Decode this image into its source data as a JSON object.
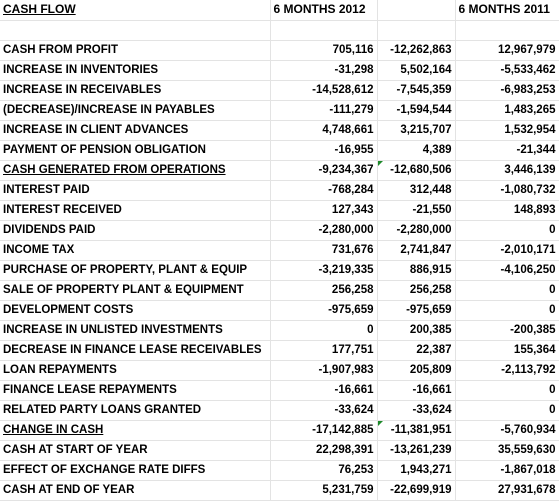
{
  "header": {
    "title": "CASH FLOW",
    "col_2012": "6 MONTHS 2012",
    "col_2011": "6 MONTHS 2011"
  },
  "rows": [
    {
      "label": "CASH FROM PROFIT",
      "a": "705,116",
      "b": "-12,262,863",
      "c": "12,967,979",
      "b_sign": "neg"
    },
    {
      "label": "INCREASE IN INVENTORIES",
      "a": "-31,298",
      "b": "5,502,164",
      "c": "-5,533,462",
      "b_sign": "pos"
    },
    {
      "label": "INCREASE IN RECEIVABLES",
      "a": "-14,528,612",
      "b": "-7,545,359",
      "c": "-6,983,253",
      "b_sign": "neg"
    },
    {
      "label": "(DECREASE)/INCREASE  IN PAYABLES",
      "a": "-111,279",
      "b": "-1,594,544",
      "c": "1,483,265",
      "b_sign": "neg"
    },
    {
      "label": "INCREASE IN CLIENT ADVANCES",
      "a": "4,748,661",
      "b": "3,215,707",
      "c": "1,532,954",
      "b_sign": "pos"
    },
    {
      "label": "PAYMENT OF PENSION OBLIGATION",
      "a": "-16,955",
      "b": "4,389",
      "c": "-21,344",
      "b_sign": "pos"
    },
    {
      "label": "CASH GENERATED FROM OPERATIONS",
      "a": "-9,234,367",
      "b": "-12,680,506",
      "c": "3,446,139",
      "b_sign": "neg",
      "marker": true
    },
    {
      "label": "INTEREST PAID",
      "a": "-768,284",
      "b": "312,448",
      "c": "-1,080,732",
      "b_sign": "pos"
    },
    {
      "label": "INTEREST RECEIVED",
      "a": "127,343",
      "b": "-21,550",
      "c": "148,893",
      "b_sign": "neg"
    },
    {
      "label": "DIVIDENDS PAID",
      "a": "-2,280,000",
      "b": "-2,280,000",
      "c": "0",
      "b_sign": "neg"
    },
    {
      "label": "INCOME TAX",
      "a": "731,676",
      "b": "2,741,847",
      "c": "-2,010,171",
      "b_sign": "pos"
    },
    {
      "label": "PURCHASE OF PROPERTY, PLANT & EQUIP",
      "a": "-3,219,335",
      "b": "886,915",
      "c": "-4,106,250",
      "b_sign": "pos"
    },
    {
      "label": "SALE OF PROPERTY PLANT & EQUIPMENT",
      "a": "256,258",
      "b": "256,258",
      "c": "0",
      "b_sign": "pos"
    },
    {
      "label": "DEVELOPMENT COSTS",
      "a": "-975,659",
      "b": "-975,659",
      "c": "0",
      "b_sign": "neg"
    },
    {
      "label": "INCREASE IN UNLISTED INVESTMENTS",
      "a": "0",
      "b": "200,385",
      "c": "-200,385",
      "b_sign": "pos"
    },
    {
      "label": "DECREASE IN FINANCE LEASE RECEIVABLES",
      "a": "177,751",
      "b": "22,387",
      "c": "155,364",
      "b_sign": "pos"
    },
    {
      "label": "LOAN REPAYMENTS",
      "a": "-1,907,983",
      "b": "205,809",
      "c": "-2,113,792",
      "b_sign": "pos"
    },
    {
      "label": "FINANCE LEASE REPAYMENTS",
      "a": "-16,661",
      "b": "-16,661",
      "c": "0",
      "b_sign": "neg"
    },
    {
      "label": "RELATED PARTY LOANS GRANTED",
      "a": "-33,624",
      "b": "-33,624",
      "c": "0",
      "b_sign": "neg"
    },
    {
      "label": "CHANGE IN CASH",
      "a": "-17,142,885",
      "b": "-11,381,951",
      "c": "-5,760,934",
      "b_sign": "neg",
      "marker": true
    },
    {
      "label": "CASH AT START OF YEAR",
      "a": "22,298,391",
      "b": "-13,261,239",
      "c": "35,559,630",
      "b_sign": "neg"
    },
    {
      "label": "EFFECT OF EXCHANGE RATE DIFFS",
      "a": "76,253",
      "b": "1,943,271",
      "c": "-1,867,018",
      "b_sign": "pos"
    },
    {
      "label": "CASH AT END OF YEAR",
      "a": "5,231,759",
      "b": "-22,699,919",
      "c": "27,931,678",
      "b_sign": "neg"
    }
  ],
  "colors": {
    "negative_diff": "#8b1a1a",
    "positive_diff": "#1f2a8c",
    "comment_marker": "#1d8a2a"
  }
}
